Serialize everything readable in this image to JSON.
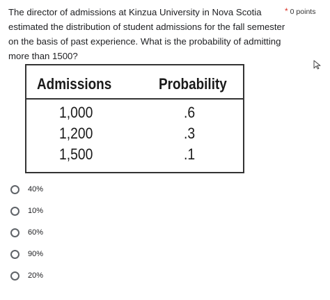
{
  "question": {
    "text": "The director of admissions at Kinzua University in Nova Scotia estimated the distribution of student admissions for the fall semester on the basis of past experience. What is the probability of admitting more than 1500?",
    "required_marker": "*",
    "points": "0 points"
  },
  "table": {
    "headers": [
      "Admissions",
      "Probability"
    ],
    "rows": [
      [
        "1,000",
        ".6"
      ],
      [
        "1,200",
        ".3"
      ],
      [
        "1,500",
        ".1"
      ]
    ]
  },
  "options": [
    "40%",
    "10%",
    "60%",
    "90%",
    "20%"
  ],
  "colors": {
    "required_marker": "#d93025",
    "radio_border": "#5f6368",
    "table_border": "#333333"
  },
  "icons": {
    "cursor": "mouse-pointer-icon"
  }
}
